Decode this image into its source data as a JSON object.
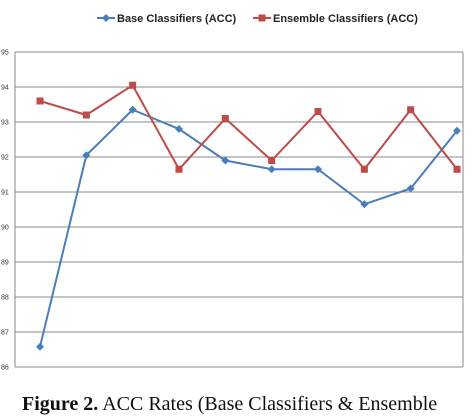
{
  "chart_data": {
    "type": "line",
    "x": [
      1,
      2,
      3,
      4,
      5,
      6,
      7,
      8,
      9,
      10
    ],
    "ylim": [
      86,
      95
    ],
    "yticks": [
      86,
      87,
      88,
      89,
      90,
      91,
      92,
      93,
      94,
      95
    ],
    "ytick_labels": [
      "86",
      "87",
      "88",
      "89",
      "90",
      "91",
      "92",
      "93",
      "94",
      "95"
    ],
    "grid": true,
    "legend_position": "top",
    "series": [
      {
        "name": "Base Classifiers (ACC)",
        "color": "#4a7ebb",
        "marker": "diamond",
        "values": [
          86.58,
          92.05,
          93.35,
          92.8,
          91.9,
          91.65,
          91.65,
          90.65,
          91.1,
          92.75
        ]
      },
      {
        "name": "Ensemble Classifiers (ACC)",
        "color": "#be4b48",
        "marker": "square",
        "values": [
          93.6,
          93.2,
          94.05,
          91.65,
          93.1,
          91.9,
          93.3,
          91.65,
          93.35,
          91.65
        ]
      }
    ]
  },
  "caption": {
    "label": "Figure 2.",
    "text": " ACC Rates (Base Classifiers & Ensemble"
  }
}
